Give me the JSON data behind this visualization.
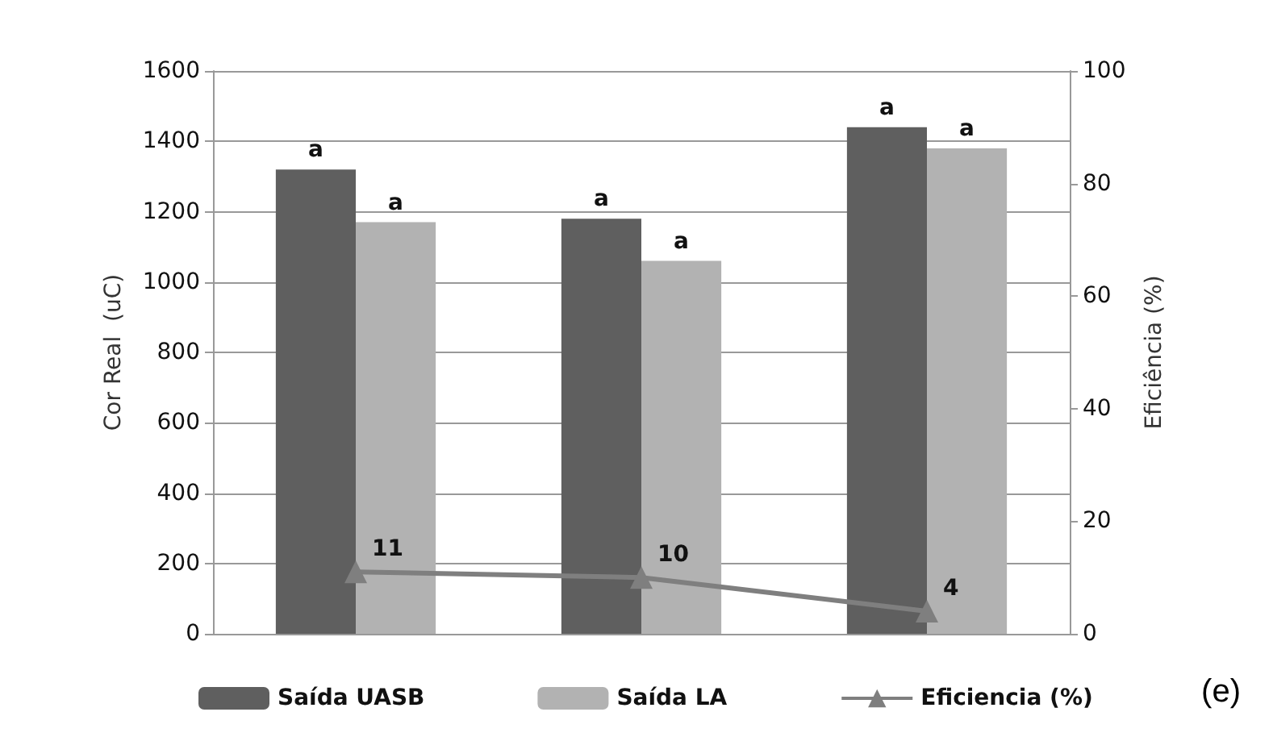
{
  "chart_data": {
    "type": "bar",
    "ylabel": "Cor Real  (uC)",
    "y2label": "Eficiência (%)",
    "categories": [
      null,
      null,
      null
    ],
    "series": [
      {
        "name": "Saída UASB",
        "color": "#5f5f5f",
        "values": [
          1320,
          1180,
          1440
        ],
        "value_labels": [
          "a",
          "a",
          "a"
        ]
      },
      {
        "name": "Saída LA",
        "color": "#b2b2b2",
        "values": [
          1170,
          1060,
          1380
        ],
        "value_labels": [
          "a",
          "a",
          "a"
        ]
      },
      {
        "name": "Eficiencia (%)",
        "type": "line",
        "axis": "y2",
        "color": "#7f7f7f",
        "values": [
          11,
          10,
          4
        ],
        "value_labels": [
          "11",
          "10",
          "4"
        ]
      }
    ],
    "ylim": [
      0,
      1600
    ],
    "yticks": [
      0,
      200,
      400,
      600,
      800,
      1000,
      1200,
      1400,
      1600
    ],
    "y2lim": [
      0,
      100
    ],
    "y2ticks": [
      0,
      20,
      40,
      60,
      80,
      100
    ],
    "grid": "y",
    "legend": "bottom",
    "marker": "triangle",
    "annotations": [
      "(e)"
    ]
  }
}
